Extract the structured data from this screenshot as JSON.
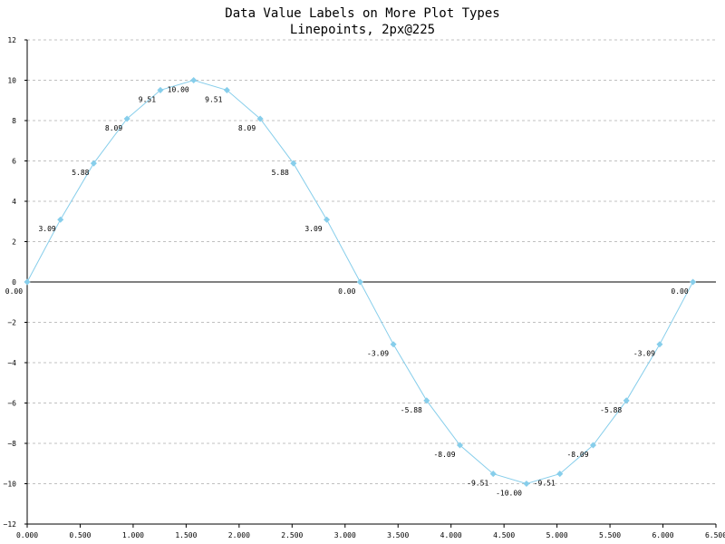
{
  "chart_data": {
    "type": "line",
    "title": "Data Value Labels on More Plot Types",
    "subtitle": "Linepoints, 2px@225",
    "xlabel": "",
    "ylabel": "",
    "xlim": [
      0,
      6.5
    ],
    "ylim": [
      -12,
      12
    ],
    "x_ticks": [
      "0.000",
      "0.500",
      "1.000",
      "1.500",
      "2.000",
      "2.500",
      "3.000",
      "3.500",
      "4.000",
      "4.500",
      "5.000",
      "5.500",
      "6.000",
      "6.500"
    ],
    "x_tick_values": [
      0,
      0.5,
      1,
      1.5,
      2,
      2.5,
      3,
      3.5,
      4,
      4.5,
      5,
      5.5,
      6,
      6.5
    ],
    "y_ticks": [
      "12",
      "10",
      "8",
      "6",
      "4",
      "2",
      "0",
      "−2",
      "−4",
      "−6",
      "−8",
      "−10",
      "−12"
    ],
    "y_tick_values": [
      12,
      10,
      8,
      6,
      4,
      2,
      0,
      -2,
      -4,
      -6,
      -8,
      -10,
      -12
    ],
    "grid": "horizontal-dashed",
    "series_color": "#87ceeb",
    "series": [
      {
        "x": [
          0.0,
          0.314,
          0.628,
          0.942,
          1.257,
          1.571,
          1.885,
          2.199,
          2.513,
          2.827,
          3.142,
          3.456,
          3.77,
          4.084,
          4.398,
          4.712,
          5.027,
          5.341,
          5.655,
          5.969,
          6.283
        ],
        "values": [
          0.0,
          3.09,
          5.88,
          8.09,
          9.51,
          10.0,
          9.51,
          8.09,
          5.88,
          3.09,
          0.0,
          -3.09,
          -5.88,
          -8.09,
          -9.51,
          -10.0,
          -9.51,
          -8.09,
          -5.88,
          -3.09,
          0.0
        ],
        "labels": [
          "0.00",
          "3.09",
          "5.88",
          "8.09",
          "9.51",
          "10.00",
          "9.51",
          "8.09",
          "5.88",
          "3.09",
          "0.00",
          "-3.09",
          "-5.88",
          "-8.09",
          "-9.51",
          "-10.00",
          "-9.51",
          "-8.09",
          "-5.88",
          "-3.09",
          "0.00"
        ]
      }
    ]
  }
}
